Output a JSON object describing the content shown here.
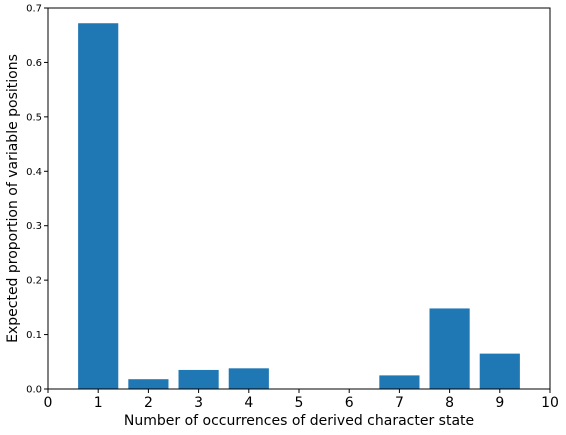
{
  "chart_data": {
    "type": "bar",
    "x": [
      1,
      2,
      3,
      4,
      5,
      6,
      7,
      8,
      9
    ],
    "values": [
      0.672,
      0.018,
      0.035,
      0.038,
      0.0,
      0.0,
      0.025,
      0.148,
      0.065
    ],
    "title": "",
    "xlabel": "Number of occurrences of derived character state",
    "ylabel": "Expected proportion of variable positions",
    "xlim": [
      0,
      10
    ],
    "ylim": [
      0,
      0.7
    ],
    "xticks": [
      "0",
      "1",
      "2",
      "3",
      "4",
      "5",
      "6",
      "7",
      "8",
      "9",
      "10"
    ],
    "yticks": [
      "0.0",
      "0.1",
      "0.2",
      "0.3",
      "0.4",
      "0.5",
      "0.6",
      "0.7"
    ],
    "bar_color": "#1f77b4",
    "grid": false,
    "legend": "none"
  }
}
